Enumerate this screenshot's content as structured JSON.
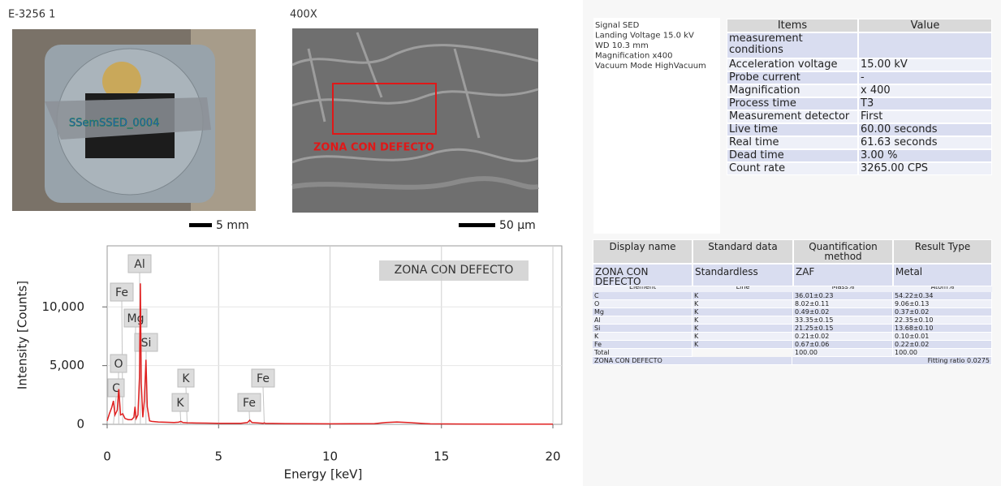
{
  "sample": {
    "id": "E-3256 1",
    "overlay": "SSemSSED_0004",
    "scale": "5 mm"
  },
  "sem": {
    "magnification": "400X",
    "zone": "ZONA CON DEFECTO",
    "scale": "50 µm"
  },
  "conditions": [
    "Signal SED",
    "Landing Voltage 15.0 kV",
    "WD 10.3 mm",
    "Magnification x400",
    "Vacuum Mode HighVacuum"
  ],
  "table1": {
    "header": [
      "Items",
      "Value"
    ],
    "rows": [
      [
        "measurement conditions"
      ],
      [
        "Acceleration voltage",
        "15.00 kV"
      ],
      [
        "Probe current",
        "-"
      ],
      [
        "Magnification",
        "x 400"
      ],
      [
        "Process time",
        "T3"
      ],
      [
        "Measurement detector",
        "First"
      ],
      [
        "Live time",
        "60.00 seconds"
      ],
      [
        "Real time",
        "61.63 seconds"
      ],
      [
        "Dead time",
        "3.00 %"
      ],
      [
        "Count rate",
        "3265.00 CPS"
      ]
    ]
  },
  "table2": {
    "header": [
      "Display name",
      "Standard data",
      "Quantification method",
      "Result Type"
    ],
    "row": [
      "ZONA CON DEFECTO",
      "Standardless",
      "ZAF",
      "Metal"
    ],
    "subheader": [
      "Element",
      "Line",
      "Mass%",
      "Atom%"
    ],
    "rows": [
      [
        "C",
        "K",
        "36.01±0.23",
        "54.22±0.34"
      ],
      [
        "O",
        "K",
        "8.02±0.11",
        "9.06±0.13"
      ],
      [
        "Mg",
        "K",
        "0.49±0.02",
        "0.37±0.02"
      ],
      [
        "Al",
        "K",
        "33.35±0.15",
        "22.35±0.10"
      ],
      [
        "Si",
        "K",
        "21.25±0.15",
        "13.68±0.10"
      ],
      [
        "K",
        "K",
        "0.21±0.02",
        "0.10±0.01"
      ],
      [
        "Fe",
        "K",
        "0.67±0.06",
        "0.22±0.02"
      ]
    ],
    "total": [
      "Total",
      "100.00",
      "100.00"
    ],
    "footer": [
      "ZONA CON DEFECTO",
      "Fitting ratio 0.0275"
    ]
  },
  "chart_data": {
    "type": "line",
    "x_label": "Energy [keV]",
    "y_label": "Intensity [Counts]",
    "annotation": "ZONA CON DEFECTO",
    "peak_labels": [
      "Al",
      "Fe",
      "Mg",
      "Si",
      "O",
      "C",
      "K",
      "K",
      "Fe",
      "Fe"
    ],
    "color": "#e02020",
    "x": [
      0,
      0.1,
      0.2,
      0.28,
      0.35,
      0.45,
      0.52,
      0.6,
      0.7,
      0.8,
      0.95,
      1.1,
      1.2,
      1.25,
      1.3,
      1.38,
      1.45,
      1.49,
      1.53,
      1.6,
      1.67,
      1.74,
      1.8,
      1.9,
      2.0,
      2.3,
      2.6,
      3.0,
      3.2,
      3.31,
      3.4,
      3.6,
      4,
      5,
      6,
      6.3,
      6.4,
      6.5,
      7,
      7.05,
      7.1,
      8,
      10,
      12,
      12.5,
      13,
      13.5,
      14,
      14.3,
      14.5,
      16,
      18,
      20
    ],
    "values": [
      300,
      900,
      1400,
      2000,
      800,
      1200,
      3000,
      800,
      900,
      500,
      400,
      400,
      600,
      1500,
      500,
      800,
      4000,
      12000,
      3500,
      600,
      2000,
      5500,
      1500,
      300,
      250,
      200,
      180,
      150,
      180,
      250,
      150,
      130,
      110,
      90,
      90,
      150,
      350,
      150,
      90,
      120,
      90,
      60,
      40,
      60,
      150,
      200,
      150,
      100,
      60,
      40,
      30,
      20,
      20
    ],
    "xlim": [
      0,
      20.4
    ],
    "ylim": [
      0,
      15200
    ],
    "xticks": [
      0,
      5,
      10,
      15,
      20
    ],
    "yticks": [
      0,
      {
        "value": 5000,
        "label": "5,000"
      },
      {
        "value": 10000,
        "label": "10,000"
      }
    ],
    "grid": true
  }
}
